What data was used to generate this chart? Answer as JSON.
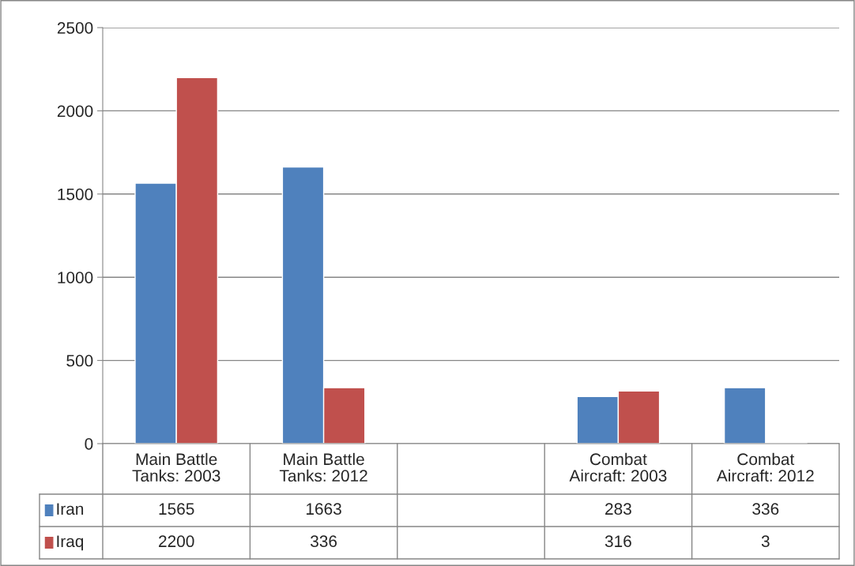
{
  "chart_data": {
    "type": "bar",
    "categories": [
      "Main Battle Tanks: 2003",
      "Main Battle Tanks: 2012",
      null,
      "Combat Aircraft: 2003",
      "Combat Aircraft: 2012"
    ],
    "series": [
      {
        "name": "Iran",
        "color": "#4f81bd",
        "values": [
          1565,
          1663,
          null,
          283,
          336
        ]
      },
      {
        "name": "Iraq",
        "color": "#c0504d",
        "values": [
          2200,
          336,
          null,
          316,
          3
        ]
      }
    ],
    "ylim": [
      0,
      2500
    ],
    "yticks": [
      0,
      500,
      1000,
      1500,
      2000,
      2500
    ],
    "grid": "y",
    "legend": "bottom",
    "data_labels": true
  }
}
